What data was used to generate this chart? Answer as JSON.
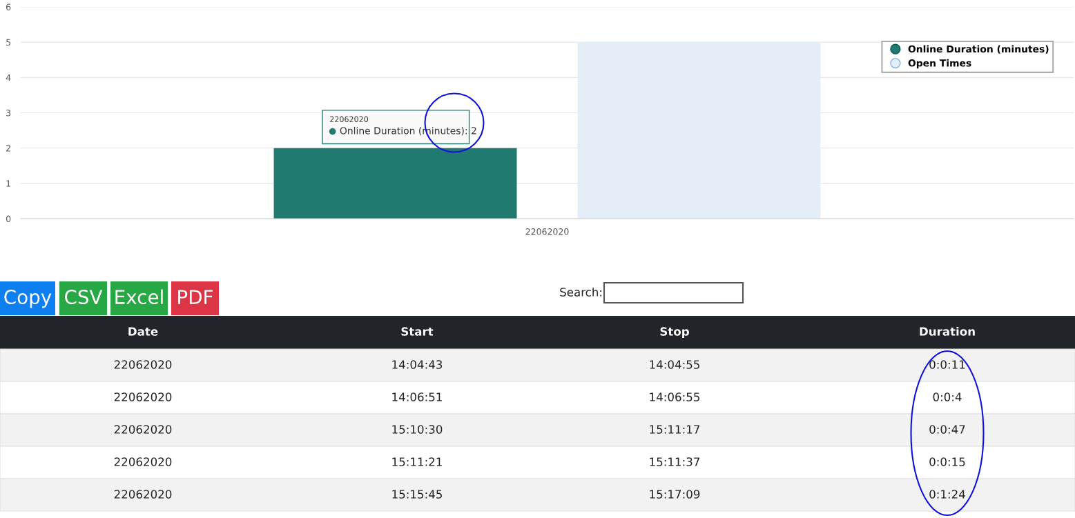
{
  "chart_data": [
    {
      "type": "bar",
      "categories": [
        "22062020"
      ],
      "series": [
        {
          "name": "Online Duration (minutes)",
          "color": "#217a6f",
          "values": [
            2
          ]
        },
        {
          "name": "Open Times",
          "color": "#e4eef8",
          "values": [
            5
          ]
        }
      ],
      "ylim": [
        0,
        6
      ],
      "yticks": [
        0,
        1,
        2,
        3,
        4,
        5,
        6
      ],
      "grid": "y",
      "legend": "top right",
      "annotations": [
        "22062020",
        "Online Duration (minutes): 2"
      ]
    },
    {
      "type": "other",
      "categories": [
        "Date",
        "Start",
        "Stop",
        "Duration"
      ],
      "annotations": [
        "Copy",
        "CSV",
        "Excel",
        "PDF",
        "Search:",
        "22062020",
        "14:04:43",
        "14:04:55",
        "0:0:11",
        "22062020",
        "14:06:51",
        "14:06:55",
        "0:0:4",
        "22062020",
        "15:10:30",
        "15:11:17",
        "0:0:47",
        "22062020",
        "15:11:21",
        "15:11:37",
        "0:0:15",
        "22062020",
        "15:15:45",
        "15:17:09",
        "0:1:24"
      ]
    }
  ]
}
